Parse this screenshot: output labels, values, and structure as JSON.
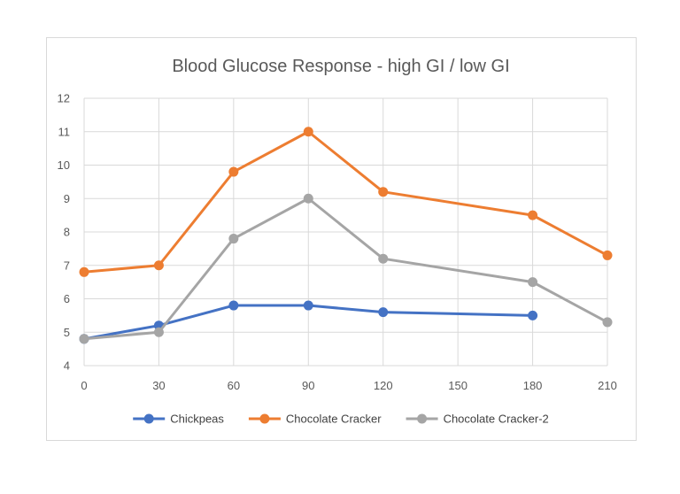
{
  "chart_data": {
    "type": "line",
    "title": "Blood Glucose Response - high GI / low GI",
    "xlabel": "",
    "ylabel": "",
    "x": [
      0,
      30,
      60,
      90,
      120,
      150,
      180,
      210
    ],
    "xticks": [
      "0",
      "30",
      "60",
      "90",
      "120",
      "150",
      "180",
      "210"
    ],
    "xlim": [
      0,
      210
    ],
    "ylim": [
      4,
      12
    ],
    "yticks": [
      "4",
      "5",
      "6",
      "7",
      "8",
      "9",
      "10",
      "11",
      "12"
    ],
    "grid": true,
    "legend": "bottom",
    "series": [
      {
        "name": "Chickpeas",
        "color": "#4472c4",
        "points": [
          [
            0,
            4.8
          ],
          [
            30,
            5.2
          ],
          [
            60,
            5.8
          ],
          [
            90,
            5.8
          ],
          [
            120,
            5.6
          ],
          [
            180,
            5.5
          ]
        ]
      },
      {
        "name": "Chocolate Cracker",
        "color": "#ed7d31",
        "points": [
          [
            0,
            6.8
          ],
          [
            30,
            7.0
          ],
          [
            60,
            9.8
          ],
          [
            90,
            11.0
          ],
          [
            120,
            9.2
          ],
          [
            180,
            8.5
          ],
          [
            210,
            7.3
          ]
        ]
      },
      {
        "name": "Chocolate Cracker-2",
        "color": "#a5a5a5",
        "points": [
          [
            0,
            4.8
          ],
          [
            30,
            5.0
          ],
          [
            60,
            7.8
          ],
          [
            90,
            9.0
          ],
          [
            120,
            7.2
          ],
          [
            180,
            6.5
          ],
          [
            210,
            5.3
          ]
        ]
      }
    ]
  }
}
